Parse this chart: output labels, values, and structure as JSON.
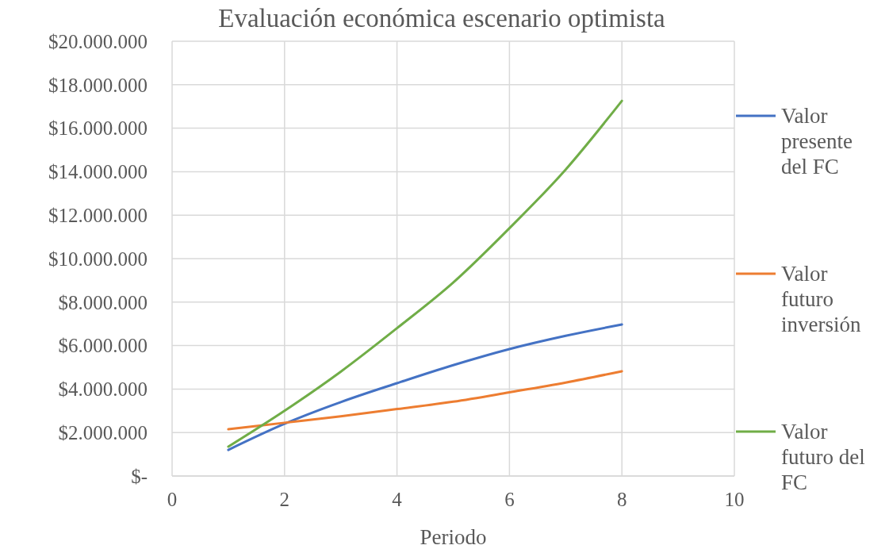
{
  "chart_data": {
    "type": "line",
    "title": "Evaluación económica escenario optimista",
    "xlabel": "Periodo",
    "x": [
      1,
      2,
      3,
      4,
      5,
      6,
      7,
      8
    ],
    "series": [
      {
        "name": "Valor presente del FC",
        "color": "#4472c4",
        "values": [
          1200000,
          2400000,
          3400000,
          4270000,
          5100000,
          5840000,
          6450000,
          6970000
        ]
      },
      {
        "name": "Valor futuro inversión",
        "color": "#ed7d31",
        "values": [
          2150000,
          2450000,
          2750000,
          3080000,
          3420000,
          3850000,
          4300000,
          4820000
        ]
      },
      {
        "name": "Valor futuro del FC",
        "color": "#70ad47",
        "values": [
          1350000,
          3000000,
          4800000,
          6800000,
          8900000,
          11400000,
          14100000,
          17260000
        ]
      }
    ],
    "xlim": [
      0,
      10
    ],
    "xticks": [
      0,
      2,
      4,
      6,
      8,
      10
    ],
    "ylim": [
      0,
      20000000
    ],
    "yticks": [
      {
        "value": 0,
        "label": "$-"
      },
      {
        "value": 2000000,
        "label": "$2.000.000"
      },
      {
        "value": 4000000,
        "label": "$4.000.000"
      },
      {
        "value": 6000000,
        "label": "$6.000.000"
      },
      {
        "value": 8000000,
        "label": "$8.000.000"
      },
      {
        "value": 10000000,
        "label": "$10.000.000"
      },
      {
        "value": 12000000,
        "label": "$12.000.000"
      },
      {
        "value": 14000000,
        "label": "$14.000.000"
      },
      {
        "value": 16000000,
        "label": "$16.000.000"
      },
      {
        "value": 18000000,
        "label": "$18.000.000"
      },
      {
        "value": 20000000,
        "label": "$20.000.000"
      }
    ],
    "grid": true,
    "legend": "right",
    "marker": "none",
    "line_style": "solid"
  }
}
